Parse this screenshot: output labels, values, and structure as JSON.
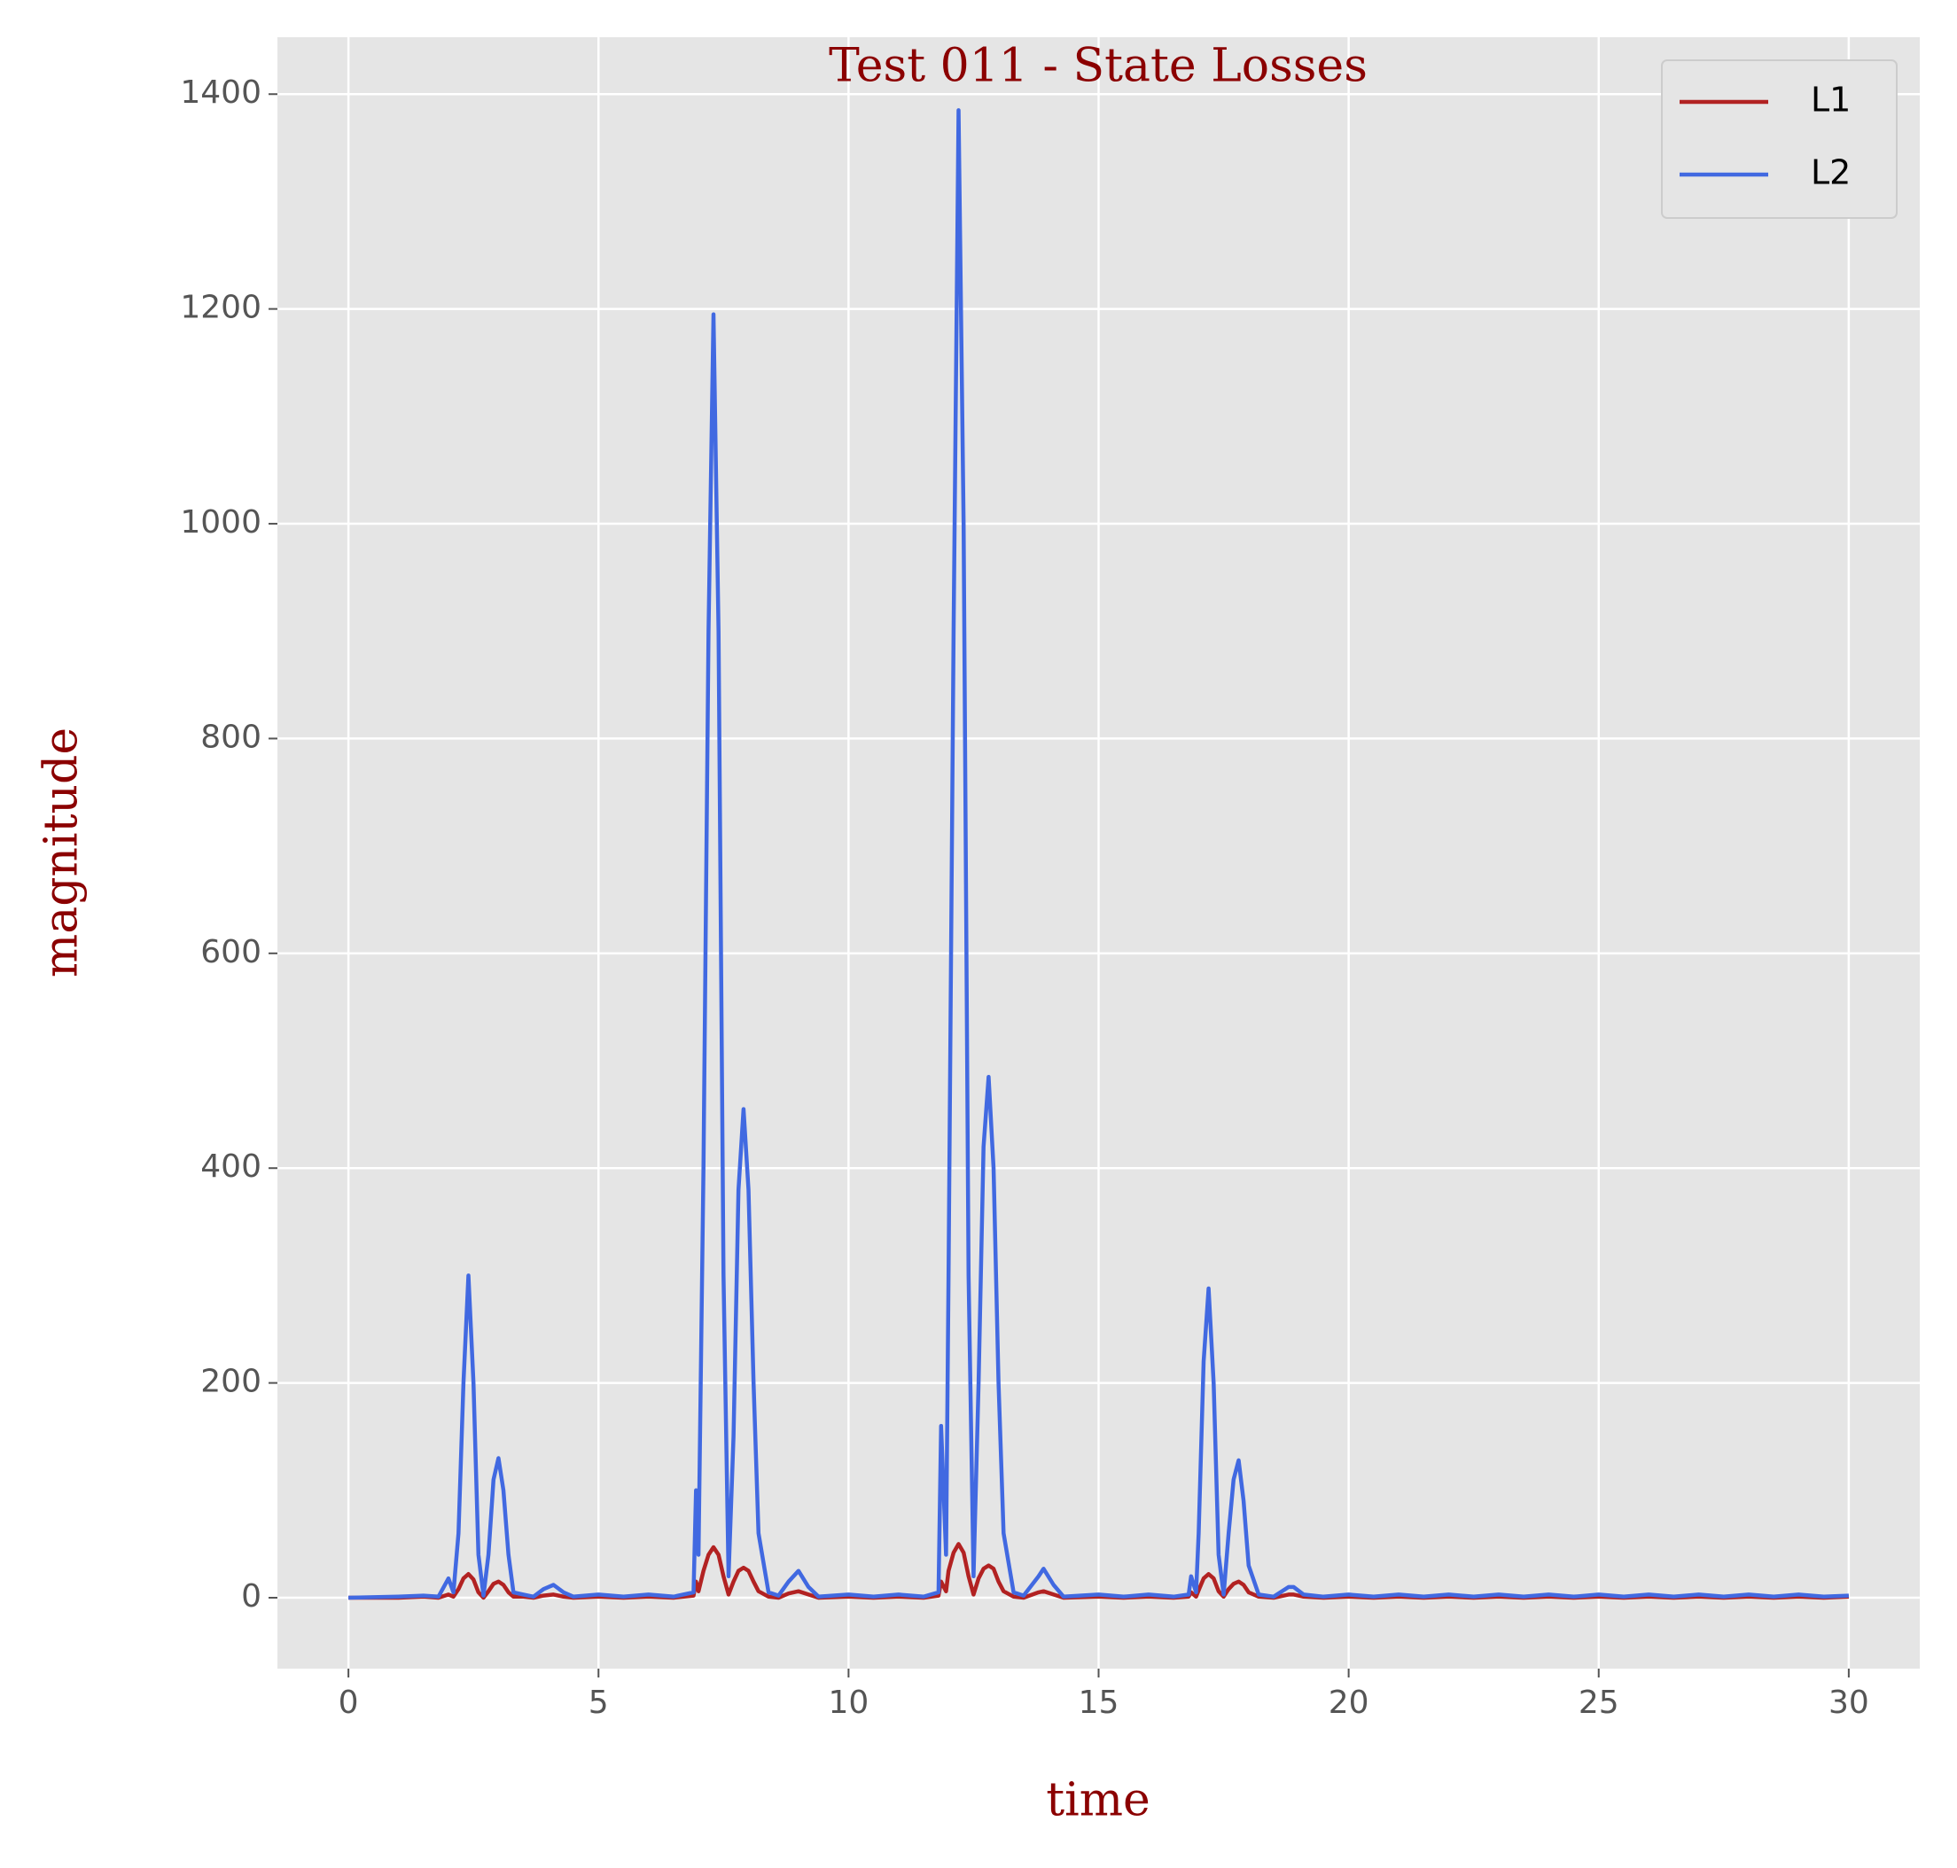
{
  "chart_data": {
    "type": "line",
    "title": "Test 011 - State Losses",
    "x_label": "time",
    "y_label": "magnitude",
    "x": [
      0,
      1,
      1.5,
      1.8,
      2.0,
      2.1,
      2.2,
      2.3,
      2.4,
      2.5,
      2.6,
      2.7,
      2.8,
      2.9,
      3.0,
      3.1,
      3.2,
      3.3,
      3.5,
      3.7,
      3.9,
      4.1,
      4.3,
      4.5,
      5,
      5.5,
      6,
      6.5,
      6.9,
      6.95,
      7.0,
      7.1,
      7.2,
      7.3,
      7.4,
      7.5,
      7.6,
      7.7,
      7.8,
      7.9,
      8.0,
      8.1,
      8.2,
      8.4,
      8.6,
      8.8,
      9.0,
      9.2,
      9.4,
      10,
      10.5,
      11,
      11.5,
      11.8,
      11.85,
      11.95,
      12.0,
      12.1,
      12.2,
      12.3,
      12.4,
      12.5,
      12.6,
      12.7,
      12.8,
      12.9,
      13.0,
      13.1,
      13.3,
      13.5,
      13.8,
      13.9,
      14.1,
      14.3,
      15,
      15.5,
      16,
      16.5,
      16.8,
      16.85,
      16.95,
      17.0,
      17.1,
      17.2,
      17.3,
      17.4,
      17.5,
      17.6,
      17.7,
      17.8,
      17.9,
      18.0,
      18.2,
      18.5,
      18.8,
      18.9,
      19.1,
      19.5,
      20,
      20.5,
      21,
      21.5,
      22,
      22.5,
      23,
      23.5,
      24,
      24.5,
      25,
      25.5,
      26,
      26.5,
      27,
      27.5,
      28,
      28.5,
      29,
      29.5,
      30
    ],
    "series": [
      {
        "name": "L1",
        "color": "#b22222",
        "values": [
          0,
          0,
          1,
          0,
          3,
          1,
          8,
          18,
          22,
          17,
          5,
          0,
          6,
          13,
          15,
          12,
          5,
          1,
          1,
          0,
          2,
          3,
          1,
          0,
          1,
          0,
          1,
          0,
          2,
          15,
          6,
          25,
          40,
          47,
          40,
          20,
          3,
          15,
          25,
          28,
          25,
          15,
          6,
          1,
          0,
          4,
          6,
          3,
          0,
          1,
          0,
          1,
          0,
          2,
          15,
          6,
          25,
          42,
          50,
          42,
          20,
          3,
          18,
          27,
          30,
          27,
          15,
          6,
          1,
          0,
          5,
          6,
          3,
          0,
          1,
          0,
          1,
          0,
          1,
          5,
          1,
          7,
          18,
          22,
          18,
          6,
          1,
          8,
          13,
          15,
          12,
          5,
          1,
          0,
          3,
          3,
          1,
          0,
          1,
          0,
          1,
          0,
          1,
          0,
          1,
          0,
          1,
          0,
          1,
          0,
          1,
          0,
          1,
          0,
          1,
          0,
          1,
          0,
          1
        ]
      },
      {
        "name": "L2",
        "color": "#4169e1",
        "values": [
          0,
          1,
          2,
          1,
          18,
          5,
          60,
          200,
          300,
          200,
          40,
          2,
          40,
          110,
          130,
          100,
          40,
          5,
          3,
          1,
          8,
          12,
          5,
          1,
          3,
          1,
          3,
          1,
          5,
          100,
          40,
          400,
          900,
          1195,
          900,
          300,
          20,
          150,
          380,
          455,
          380,
          200,
          60,
          5,
          2,
          15,
          25,
          10,
          1,
          3,
          1,
          3,
          1,
          5,
          160,
          40,
          300,
          900,
          1385,
          1000,
          300,
          20,
          200,
          420,
          485,
          400,
          200,
          60,
          5,
          2,
          20,
          27,
          12,
          1,
          3,
          1,
          3,
          1,
          3,
          20,
          5,
          60,
          220,
          288,
          200,
          40,
          3,
          60,
          110,
          128,
          90,
          30,
          3,
          1,
          10,
          10,
          3,
          1,
          3,
          1,
          3,
          1,
          3,
          1,
          3,
          1,
          3,
          1,
          3,
          1,
          3,
          1,
          3,
          1,
          3,
          1,
          3,
          1,
          2
        ]
      }
    ],
    "xlim": [
      -1.42,
      31.42
    ],
    "ylim": [
      -66,
      1453
    ],
    "xticks": [
      0,
      5,
      10,
      15,
      20,
      25,
      30
    ],
    "yticks": [
      0,
      200,
      400,
      600,
      800,
      1000,
      1200,
      1400
    ],
    "grid": true,
    "legend": "upper right"
  }
}
